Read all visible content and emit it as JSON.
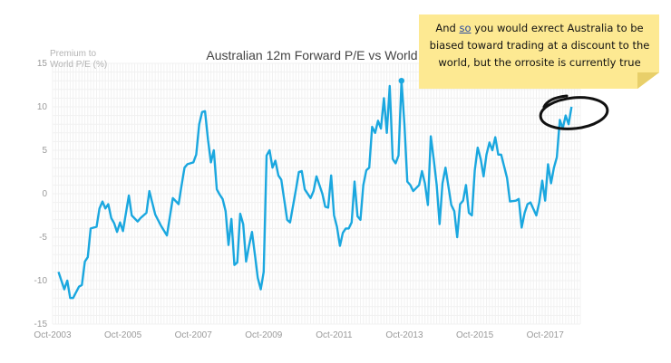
{
  "annotation": {
    "line1_pre": "And ",
    "line1_u": "so",
    "line1_post": " you would exrect Australia to be",
    "line2": "biased toward trading at a discount to the",
    "line3": "world, but the orrosite is currently true"
  },
  "colors": {
    "series": "#1aa7df",
    "note": "#fde992"
  },
  "chart_data": {
    "type": "line",
    "title": "Australian 12m Forward P/E vs World",
    "ylabel_lines": [
      "Premium to",
      "World P/E (%)"
    ],
    "ylim": [
      -15,
      15
    ],
    "yticks": [
      15,
      10,
      5,
      0,
      -5,
      -10,
      -15
    ],
    "xlim": [
      "2003-10",
      "2018-10"
    ],
    "xticks": [
      "Oct-2003",
      "Oct-2005",
      "Oct-2007",
      "Oct-2009",
      "Oct-2011",
      "Oct-2013",
      "Oct-2015",
      "Oct-2017"
    ],
    "grid": true,
    "series": [
      {
        "values": [
          [
            "2003-12",
            -9.0
          ],
          [
            "2004-02",
            -11.0
          ],
          [
            "2004-03",
            -10.0
          ],
          [
            "2004-04",
            -12.0
          ],
          [
            "2004-05",
            -12.0
          ],
          [
            "2004-07",
            -10.7
          ],
          [
            "2004-08",
            -10.5
          ],
          [
            "2004-09",
            -7.8
          ],
          [
            "2004-10",
            -7.3
          ],
          [
            "2004-11",
            -4.0
          ],
          [
            "2005-01",
            -3.8
          ],
          [
            "2005-02",
            -1.7
          ],
          [
            "2005-03",
            -0.9
          ],
          [
            "2005-04",
            -1.7
          ],
          [
            "2005-05",
            -1.2
          ],
          [
            "2005-06",
            -2.8
          ],
          [
            "2005-07",
            -3.4
          ],
          [
            "2005-08",
            -4.4
          ],
          [
            "2005-09",
            -3.3
          ],
          [
            "2005-10",
            -4.3
          ],
          [
            "2005-12",
            -0.2
          ],
          [
            "2006-01",
            -2.5
          ],
          [
            "2006-03",
            -3.2
          ],
          [
            "2006-04",
            -2.8
          ],
          [
            "2006-06",
            -2.2
          ],
          [
            "2006-07",
            0.3
          ],
          [
            "2006-09",
            -2.4
          ],
          [
            "2006-11",
            -3.7
          ],
          [
            "2007-01",
            -4.8
          ],
          [
            "2007-03",
            -0.5
          ],
          [
            "2007-05",
            -1.2
          ],
          [
            "2007-06",
            1.0
          ],
          [
            "2007-07",
            3.0
          ],
          [
            "2007-08",
            3.4
          ],
          [
            "2007-10",
            3.6
          ],
          [
            "2007-11",
            4.5
          ],
          [
            "2007-12",
            8.0
          ],
          [
            "2008-01",
            9.4
          ],
          [
            "2008-02",
            9.5
          ],
          [
            "2008-03",
            6.2
          ],
          [
            "2008-04",
            3.6
          ],
          [
            "2008-05",
            5.0
          ],
          [
            "2008-06",
            0.5
          ],
          [
            "2008-07",
            -0.1
          ],
          [
            "2008-08",
            -0.6
          ],
          [
            "2008-09",
            -2.0
          ],
          [
            "2008-10",
            -5.9
          ],
          [
            "2008-11",
            -2.9
          ],
          [
            "2008-12",
            -8.2
          ],
          [
            "2009-01",
            -7.9
          ],
          [
            "2009-02",
            -2.3
          ],
          [
            "2009-03",
            -3.5
          ],
          [
            "2009-04",
            -7.8
          ],
          [
            "2009-05",
            -6.0
          ],
          [
            "2009-06",
            -4.4
          ],
          [
            "2009-07",
            -7.0
          ],
          [
            "2009-08",
            -9.7
          ],
          [
            "2009-09",
            -11.0
          ],
          [
            "2009-10",
            -9.0
          ],
          [
            "2009-11",
            4.4
          ],
          [
            "2009-12",
            5.0
          ],
          [
            "2010-01",
            3.0
          ],
          [
            "2010-02",
            3.8
          ],
          [
            "2010-03",
            2.1
          ],
          [
            "2010-04",
            1.6
          ],
          [
            "2010-06",
            -3.0
          ],
          [
            "2010-07",
            -3.3
          ],
          [
            "2010-09",
            0.5
          ],
          [
            "2010-10",
            2.5
          ],
          [
            "2010-11",
            2.6
          ],
          [
            "2010-12",
            0.5
          ],
          [
            "2011-02",
            -0.5
          ],
          [
            "2011-03",
            0.3
          ],
          [
            "2011-04",
            2.0
          ],
          [
            "2011-06",
            0.0
          ],
          [
            "2011-07",
            -1.5
          ],
          [
            "2011-08",
            -1.6
          ],
          [
            "2011-09",
            2.1
          ],
          [
            "2011-10",
            -2.5
          ],
          [
            "2011-11",
            -3.8
          ],
          [
            "2011-12",
            -6.0
          ],
          [
            "2012-01",
            -4.5
          ],
          [
            "2012-02",
            -4.0
          ],
          [
            "2012-03",
            -4.0
          ],
          [
            "2012-04",
            -3.3
          ],
          [
            "2012-05",
            1.4
          ],
          [
            "2012-06",
            -2.6
          ],
          [
            "2012-07",
            -3.0
          ],
          [
            "2012-08",
            1.0
          ],
          [
            "2012-09",
            2.7
          ],
          [
            "2012-10",
            3.0
          ],
          [
            "2012-11",
            7.7
          ],
          [
            "2012-12",
            7.0
          ],
          [
            "2013-01",
            8.4
          ],
          [
            "2013-02",
            7.5
          ],
          [
            "2013-03",
            11.0
          ],
          [
            "2013-04",
            7.0
          ],
          [
            "2013-05",
            12.4
          ],
          [
            "2013-06",
            4.0
          ],
          [
            "2013-07",
            3.5
          ],
          [
            "2013-08",
            4.4
          ],
          [
            "2013-09",
            13.0
          ],
          [
            "2013-10",
            8.0
          ],
          [
            "2013-11",
            1.4
          ],
          [
            "2013-12",
            1.0
          ],
          [
            "2014-01",
            0.3
          ],
          [
            "2014-03",
            1.0
          ],
          [
            "2014-04",
            2.6
          ],
          [
            "2014-05",
            1.2
          ],
          [
            "2014-06",
            -1.3
          ],
          [
            "2014-07",
            6.6
          ],
          [
            "2014-08",
            4.0
          ],
          [
            "2014-09",
            1.0
          ],
          [
            "2014-10",
            -3.5
          ],
          [
            "2014-11",
            1.2
          ],
          [
            "2014-12",
            3.0
          ],
          [
            "2015-02",
            -1.3
          ],
          [
            "2015-03",
            -2.0
          ],
          [
            "2015-04",
            -5.0
          ],
          [
            "2015-05",
            -1.2
          ],
          [
            "2015-06",
            -0.8
          ],
          [
            "2015-07",
            1.0
          ],
          [
            "2015-08",
            -2.2
          ],
          [
            "2015-09",
            -2.5
          ],
          [
            "2015-10",
            2.7
          ],
          [
            "2015-11",
            5.3
          ],
          [
            "2015-12",
            4.0
          ],
          [
            "2016-01",
            2.0
          ],
          [
            "2016-02",
            4.5
          ],
          [
            "2016-03",
            5.9
          ],
          [
            "2016-04",
            5.0
          ],
          [
            "2016-05",
            6.5
          ],
          [
            "2016-06",
            4.5
          ],
          [
            "2016-07",
            4.5
          ],
          [
            "2016-09",
            1.8
          ],
          [
            "2016-10",
            -0.9
          ],
          [
            "2016-12",
            -0.8
          ],
          [
            "2017-01",
            -0.6
          ],
          [
            "2017-02",
            -3.9
          ],
          [
            "2017-03",
            -2.2
          ],
          [
            "2017-04",
            -1.2
          ],
          [
            "2017-05",
            -1.0
          ],
          [
            "2017-07",
            -2.5
          ],
          [
            "2017-08",
            -1.0
          ],
          [
            "2017-09",
            1.5
          ],
          [
            "2017-10",
            -0.8
          ],
          [
            "2017-11",
            3.4
          ],
          [
            "2017-12",
            1.2
          ],
          [
            "2018-01",
            3.0
          ],
          [
            "2018-02",
            4.2
          ],
          [
            "2018-03",
            8.5
          ],
          [
            "2018-04",
            7.5
          ],
          [
            "2018-05",
            9.0
          ],
          [
            "2018-06",
            8.0
          ],
          [
            "2018-07",
            10.0
          ]
        ]
      }
    ],
    "highlight_point": [
      "2013-09",
      13.0
    ]
  }
}
